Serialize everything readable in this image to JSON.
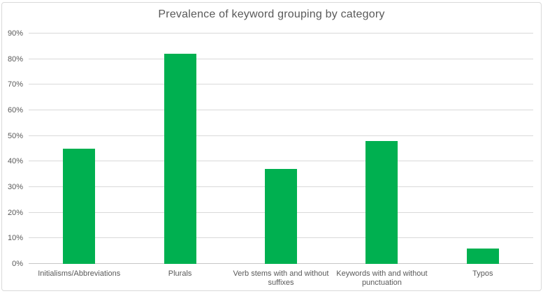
{
  "chart_data": {
    "type": "bar",
    "title": "Prevalence of keyword grouping by category",
    "categories": [
      "Initialisms/Abbreviations",
      "Plurals",
      "Verb stems with and without suffixes",
      "Keywords with and without punctuation",
      "Typos"
    ],
    "values": [
      45,
      82,
      37,
      48,
      6
    ],
    "xlabel": "",
    "ylabel": "",
    "ylim": [
      0,
      90
    ],
    "ytick_step": 10,
    "ytick_labels": [
      "0%",
      "10%",
      "20%",
      "30%",
      "40%",
      "50%",
      "60%",
      "70%",
      "80%",
      "90%"
    ],
    "grid": true,
    "legend": false,
    "bar_color": "#00b050",
    "gridline_color": "#d9d9d9",
    "axis_line_color": "#c6c6c6",
    "text_color": "#595959",
    "border_color": "#d9d9d9"
  }
}
